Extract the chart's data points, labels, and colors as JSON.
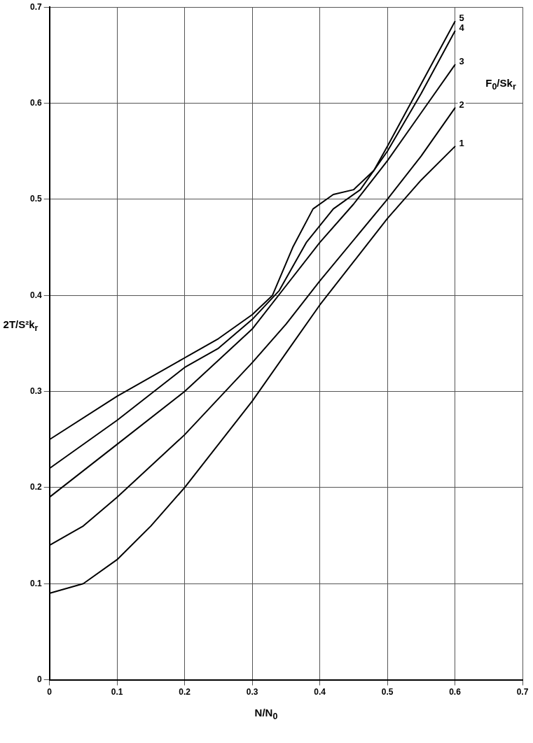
{
  "chart_data": {
    "type": "line",
    "xlabel": "N/N$_{0}$",
    "ylabel": "2T/S²k$_{r}$",
    "legend_title": "F$_{0}$/Sk$_{r}$",
    "xlim": [
      0,
      0.7
    ],
    "xticks": [
      0,
      0.1,
      0.2,
      0.3,
      0.4,
      0.5,
      0.6,
      0.7
    ],
    "ylim": [
      0,
      0.7
    ],
    "yticks": [
      0,
      0.1,
      0.2,
      0.3,
      0.4,
      0.5,
      0.6,
      0.7
    ],
    "grid": true,
    "legend": false,
    "marker": "none",
    "series": [
      {
        "name": "5",
        "color": "#000000",
        "x": [
          0,
          0.1,
          0.2,
          0.25,
          0.3,
          0.33,
          0.36,
          0.39,
          0.42,
          0.45,
          0.48,
          0.5,
          0.55,
          0.6
        ],
        "values": [
          0.25,
          0.295,
          0.335,
          0.355,
          0.38,
          0.4,
          0.45,
          0.49,
          0.505,
          0.51,
          0.53,
          0.555,
          0.62,
          0.685
        ]
      },
      {
        "name": "4",
        "color": "#000000",
        "x": [
          0,
          0.1,
          0.2,
          0.25,
          0.3,
          0.34,
          0.38,
          0.42,
          0.46,
          0.5,
          0.55,
          0.6
        ],
        "values": [
          0.22,
          0.27,
          0.325,
          0.345,
          0.375,
          0.405,
          0.455,
          0.49,
          0.51,
          0.55,
          0.61,
          0.675
        ]
      },
      {
        "name": "3",
        "color": "#000000",
        "x": [
          0,
          0.1,
          0.2,
          0.3,
          0.35,
          0.4,
          0.45,
          0.5,
          0.55,
          0.6
        ],
        "values": [
          0.19,
          0.245,
          0.3,
          0.365,
          0.41,
          0.455,
          0.495,
          0.54,
          0.59,
          0.64
        ]
      },
      {
        "name": "2",
        "color": "#000000",
        "x": [
          0,
          0.05,
          0.1,
          0.2,
          0.3,
          0.35,
          0.4,
          0.5,
          0.55,
          0.6
        ],
        "values": [
          0.14,
          0.16,
          0.19,
          0.255,
          0.33,
          0.37,
          0.415,
          0.5,
          0.545,
          0.595
        ]
      },
      {
        "name": "1",
        "color": "#000000",
        "x": [
          0,
          0.05,
          0.1,
          0.15,
          0.2,
          0.25,
          0.3,
          0.35,
          0.4,
          0.45,
          0.5,
          0.55,
          0.6
        ],
        "values": [
          0.09,
          0.1,
          0.125,
          0.16,
          0.2,
          0.245,
          0.29,
          0.34,
          0.39,
          0.435,
          0.48,
          0.52,
          0.555
        ]
      }
    ]
  }
}
